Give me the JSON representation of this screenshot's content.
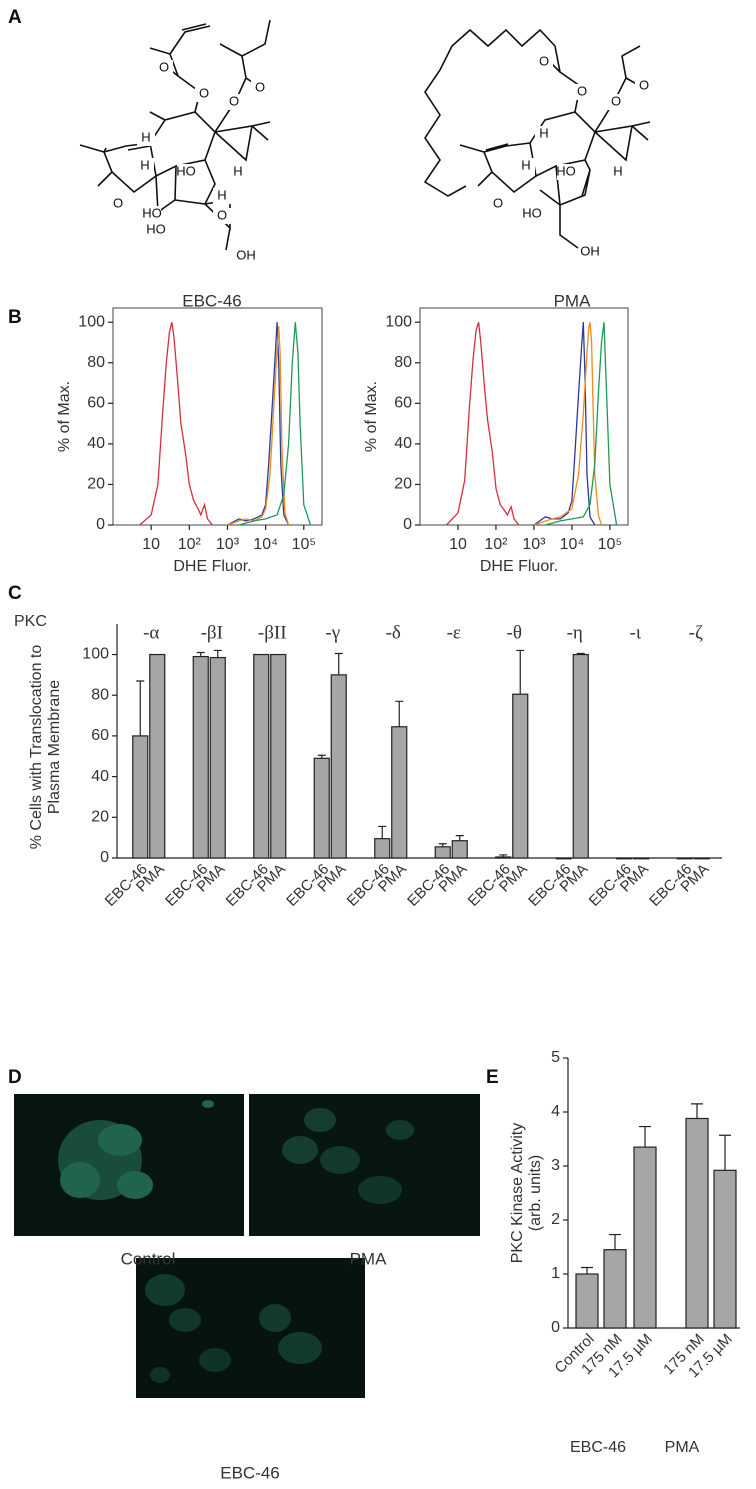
{
  "panel_labels": [
    "A",
    "B",
    "C",
    "D",
    "E"
  ],
  "structures": [
    {
      "name": "EBC-46",
      "atoms": [
        "O",
        "O",
        "O",
        "O",
        "H",
        "H",
        "H",
        "HO",
        "H",
        "O",
        "HO",
        "HO",
        "O",
        "OH"
      ]
    },
    {
      "name": "PMA",
      "atoms": [
        "O",
        "O",
        "O",
        "O",
        "H",
        "H",
        "HO",
        "H",
        "O",
        "HO",
        "OH"
      ]
    }
  ],
  "chart_data": [
    {
      "type": "line",
      "x_scale": "log",
      "xlabel": "DHE Fluor.",
      "ylabel": "% of Max.",
      "xlim": [
        1,
        300000
      ],
      "ylim": [
        0,
        107
      ],
      "xticks": [
        {
          "value": 10,
          "label": "10"
        },
        {
          "value": 100,
          "label": "10²"
        },
        {
          "value": 1000,
          "label": "10³"
        },
        {
          "value": 10000,
          "label": "10⁴"
        },
        {
          "value": 100000,
          "label": "10⁵"
        }
      ],
      "yticks": [
        0,
        20,
        40,
        60,
        80,
        100
      ],
      "series": [
        {
          "color": "#d62e3c",
          "x": [
            5,
            10,
            15,
            20,
            25,
            30,
            35,
            40,
            50,
            60,
            80,
            100,
            130,
            170,
            200,
            250,
            300,
            400
          ],
          "values": [
            0,
            5,
            20,
            55,
            80,
            95,
            100,
            92,
            70,
            50,
            35,
            20,
            12,
            8,
            5,
            10,
            3,
            0
          ]
        },
        {
          "color": "#2b3a9b",
          "x": [
            1000,
            2000,
            3000,
            5000,
            8000,
            10000,
            12000,
            15000,
            18000,
            20000,
            22000,
            25000,
            30000,
            40000
          ],
          "values": [
            0,
            3,
            2,
            3,
            5,
            10,
            30,
            60,
            85,
            100,
            80,
            30,
            5,
            0
          ]
        },
        {
          "color": "#f08a1c",
          "x": [
            1000,
            2000,
            3000,
            5000,
            8000,
            10000,
            13000,
            16000,
            19000,
            22000,
            24000,
            27000,
            32000,
            40000
          ],
          "values": [
            0,
            2,
            3,
            2,
            4,
            8,
            25,
            55,
            80,
            98,
            85,
            35,
            6,
            0
          ]
        },
        {
          "color": "#1f9a55",
          "x": [
            2000,
            5000,
            10000,
            20000,
            30000,
            40000,
            50000,
            60000,
            70000,
            80000,
            100000,
            150000
          ],
          "values": [
            0,
            2,
            3,
            5,
            15,
            40,
            80,
            100,
            85,
            50,
            10,
            0
          ]
        }
      ]
    },
    {
      "type": "line",
      "x_scale": "log",
      "xlabel": "DHE Fluor.",
      "ylabel": "% of Max.",
      "xlim": [
        1,
        300000
      ],
      "ylim": [
        0,
        107
      ],
      "xticks": [
        {
          "value": 10,
          "label": "10"
        },
        {
          "value": 100,
          "label": "10²"
        },
        {
          "value": 1000,
          "label": "10³"
        },
        {
          "value": 10000,
          "label": "10⁴"
        },
        {
          "value": 100000,
          "label": "10⁵"
        }
      ],
      "yticks": [
        0,
        20,
        40,
        60,
        80,
        100
      ],
      "series": [
        {
          "color": "#d62e3c",
          "x": [
            5,
            10,
            15,
            20,
            25,
            30,
            35,
            40,
            50,
            60,
            80,
            100,
            130,
            170,
            200,
            250,
            300,
            400
          ],
          "values": [
            0,
            6,
            22,
            58,
            82,
            96,
            100,
            90,
            68,
            52,
            36,
            18,
            10,
            7,
            5,
            9,
            3,
            0
          ]
        },
        {
          "color": "#2b3a9b",
          "x": [
            1000,
            2000,
            3000,
            5000,
            8000,
            10000,
            12000,
            15000,
            18000,
            20000,
            22000,
            25000,
            30000,
            40000
          ],
          "values": [
            0,
            4,
            3,
            3,
            6,
            12,
            35,
            65,
            88,
            100,
            75,
            25,
            4,
            0
          ]
        },
        {
          "color": "#f08a1c",
          "x": [
            1000,
            3000,
            5000,
            10000,
            15000,
            20000,
            25000,
            28000,
            30000,
            33000,
            36000,
            40000,
            50000,
            60000
          ],
          "values": [
            0,
            3,
            4,
            8,
            25,
            55,
            85,
            98,
            100,
            90,
            60,
            25,
            5,
            0
          ]
        },
        {
          "color": "#1f9a55",
          "x": [
            2000,
            5000,
            10000,
            20000,
            30000,
            40000,
            50000,
            60000,
            70000,
            80000,
            100000,
            150000
          ],
          "values": [
            0,
            2,
            3,
            4,
            10,
            30,
            65,
            90,
            100,
            70,
            20,
            0
          ]
        }
      ]
    },
    {
      "type": "bar",
      "prefix_label": "PKC",
      "group_labels": [
        "-α",
        "-βI",
        "-βII",
        "-γ",
        "-δ",
        "-ε",
        "-θ",
        "-η",
        "-ι",
        "-ζ"
      ],
      "ylabel": [
        "% Cells with Translocation to",
        "Plasma Membrane"
      ],
      "ylim": [
        0,
        115
      ],
      "yticks": [
        0,
        20,
        40,
        60,
        80,
        100
      ],
      "color": "#a6a6a6",
      "series": [
        {
          "name": "EBC-46",
          "values": [
            60,
            99,
            100,
            49,
            9.5,
            5.5,
            0.5,
            0,
            0,
            0
          ],
          "errors": [
            27,
            2,
            0,
            1.5,
            6,
            1.5,
            1,
            0,
            0,
            0
          ]
        },
        {
          "name": "PMA",
          "values": [
            100,
            98.5,
            100,
            90,
            64.5,
            8.5,
            80.5,
            100,
            0,
            0
          ],
          "errors": [
            0,
            3.5,
            0,
            10.5,
            12.5,
            2.5,
            21.5,
            0.5,
            0,
            0
          ]
        }
      ]
    },
    {
      "type": "bar",
      "categories": [
        "Control",
        "175 nM",
        "17.5 µM",
        "175 nM",
        "17.5 µM"
      ],
      "values": [
        1,
        1.45,
        3.35,
        3.88,
        2.92
      ],
      "errors": [
        0.12,
        0.28,
        0.38,
        0.27,
        0.65
      ],
      "group_labels": [
        "EBC-46",
        "PMA"
      ],
      "ylabel": [
        "PKC Kinase Activity",
        "(arb. units)"
      ],
      "ylim": [
        0,
        5
      ],
      "yticks": [
        0,
        1,
        2,
        3,
        4,
        5
      ],
      "color": "#a6a6a6"
    }
  ],
  "micrographs": [
    {
      "label": "Control"
    },
    {
      "label": "PMA"
    },
    {
      "label": "EBC-46"
    }
  ]
}
